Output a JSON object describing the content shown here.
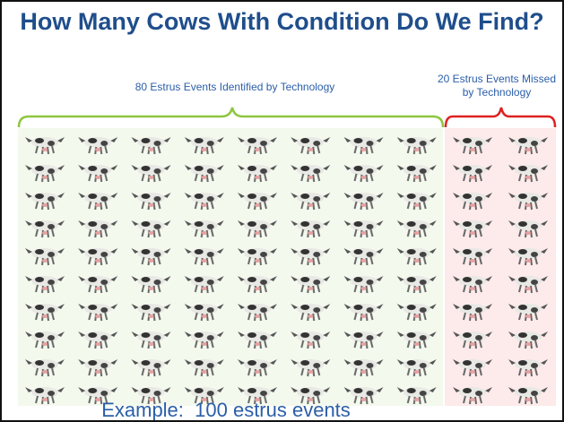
{
  "title": "How Many Cows With Condition Do We Find?",
  "labels": {
    "identified": "80 Estrus Events Identified by Technology",
    "missed": "20 Estrus Events Missed by Technology"
  },
  "footer": "Example:  100 estrus events"
}
